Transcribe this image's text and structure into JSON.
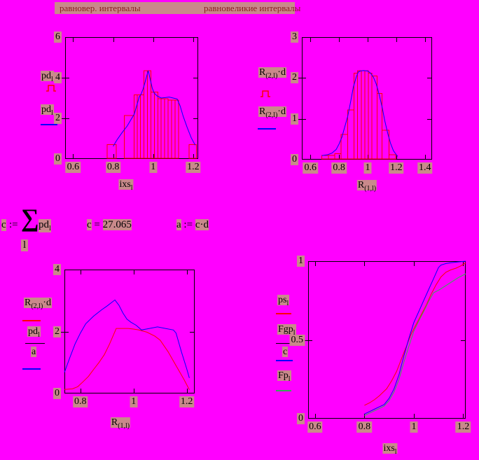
{
  "titles": {
    "left": "равновер. интервалы",
    "right": "равновеликие интервалы"
  },
  "formulas": {
    "sum_lhs": "c",
    "sum_assign": ":=",
    "sigma": "∑",
    "sum_index": "l",
    "sum_operand_base": "pd",
    "sum_operand_sub": "l",
    "result_lhs": "c",
    "result_eq": "=",
    "result_value": "27.065",
    "a_lhs": "a",
    "a_assign": ":=",
    "a_rhs": "c·d"
  },
  "colors": {
    "background": "#ff00ff",
    "highlight": "#c9898b",
    "title_text": "#8b2020",
    "axis": "#000000",
    "hist": "#ff0000",
    "red": "#ff0000",
    "blue": "#0000ff",
    "green": "#33aa55"
  },
  "chart_data": [
    {
      "name": "equiprobable-intervals-histogram",
      "type": "bar",
      "xlim": [
        0.56,
        1.225
      ],
      "ylim": [
        0,
        6
      ],
      "x_ticks": [
        {
          "v": 0.6,
          "t": "0.6"
        },
        {
          "v": 0.8,
          "t": "0.8"
        },
        {
          "v": 1,
          "t": "1"
        },
        {
          "v": 1.2,
          "t": "1.2"
        }
      ],
      "y_ticks": [
        {
          "v": 0,
          "t": "0"
        },
        {
          "v": 2,
          "t": "2"
        },
        {
          "v": 4,
          "t": "4"
        },
        {
          "v": 6,
          "t": "6"
        }
      ],
      "xlabel": {
        "base": "ixs",
        "sub": "l"
      },
      "legend": [
        {
          "base": "pd",
          "sub": "l",
          "suffix": ""
        },
        {
          "base": "pd",
          "sub": "l",
          "suffix": ""
        }
      ],
      "bars": [
        [
          0.77,
          0.815,
          0.7
        ],
        [
          0.855,
          0.905,
          2.13
        ],
        [
          0.905,
          0.92,
          3.15
        ],
        [
          0.92,
          0.937,
          3.15
        ],
        [
          0.937,
          0.954,
          3.15
        ],
        [
          0.954,
          0.971,
          4.35
        ],
        [
          0.971,
          0.988,
          4.35
        ],
        [
          0.988,
          1.006,
          3.3
        ],
        [
          1.006,
          1.023,
          3.3
        ],
        [
          1.023,
          1.04,
          2.97
        ],
        [
          1.04,
          1.057,
          2.97
        ],
        [
          1.057,
          1.075,
          2.97
        ],
        [
          1.075,
          1.092,
          2.9
        ],
        [
          1.092,
          1.109,
          2.9
        ],
        [
          1.109,
          1.127,
          2.9
        ],
        [
          1.18,
          1.217,
          0.7
        ]
      ],
      "series": [
        {
          "name": "pd-density-line",
          "color": "#0000ff",
          "points": [
            [
              0.8,
              0.62
            ],
            [
              0.82,
              0.95
            ],
            [
              0.845,
              1.3
            ],
            [
              0.87,
              1.62
            ],
            [
              0.89,
              1.95
            ],
            [
              0.905,
              2.2
            ],
            [
              0.92,
              2.7
            ],
            [
              0.93,
              3.05
            ],
            [
              0.94,
              3.2
            ],
            [
              0.95,
              3.45
            ],
            [
              0.96,
              3.8
            ],
            [
              0.975,
              4.35
            ],
            [
              0.985,
              3.95
            ],
            [
              0.995,
              3.5
            ],
            [
              1.005,
              3.25
            ],
            [
              1.02,
              3.1
            ],
            [
              1.04,
              3.0
            ],
            [
              1.06,
              3.02
            ],
            [
              1.08,
              3.05
            ],
            [
              1.1,
              3.0
            ],
            [
              1.12,
              2.95
            ],
            [
              1.135,
              2.6
            ],
            [
              1.15,
              2.1
            ],
            [
              1.17,
              1.55
            ],
            [
              1.19,
              1.05
            ],
            [
              1.21,
              0.68
            ]
          ]
        }
      ]
    },
    {
      "name": "equal-width-intervals-histogram",
      "type": "bar",
      "xlim": [
        0.54,
        1.45
      ],
      "ylim": [
        0,
        3
      ],
      "x_ticks": [
        {
          "v": 0.6,
          "t": "0.6"
        },
        {
          "v": 0.8,
          "t": "0.8"
        },
        {
          "v": 1,
          "t": "1"
        },
        {
          "v": 1.2,
          "t": "1.2"
        },
        {
          "v": 1.4,
          "t": "1.4"
        }
      ],
      "y_ticks": [
        {
          "v": 0,
          "t": "0"
        },
        {
          "v": 1,
          "t": "1"
        },
        {
          "v": 2,
          "t": "2"
        },
        {
          "v": 3,
          "t": "3"
        }
      ],
      "xlabel": {
        "base": "R",
        "sub": "(1,l)"
      },
      "legend": [
        {
          "base": "R",
          "sub": "(2,l)",
          "suffix": "·d"
        },
        {
          "base": "R",
          "sub": "(2,l)",
          "suffix": "·d"
        }
      ],
      "bars": [
        [
          0.68,
          0.725,
          0.1
        ],
        [
          0.725,
          0.77,
          0.1
        ],
        [
          0.77,
          0.815,
          0.15
        ],
        [
          0.815,
          0.86,
          0.62
        ],
        [
          0.86,
          0.905,
          1.22
        ],
        [
          0.905,
          0.93,
          2.12
        ],
        [
          0.93,
          0.955,
          2.18
        ],
        [
          0.955,
          0.98,
          2.18
        ],
        [
          0.98,
          1.005,
          2.18
        ],
        [
          1.005,
          1.03,
          2.12
        ],
        [
          1.03,
          1.065,
          2.05
        ],
        [
          1.065,
          1.1,
          1.62
        ],
        [
          1.1,
          1.15,
          0.72
        ],
        [
          1.15,
          1.195,
          0.12
        ]
      ],
      "series": [
        {
          "name": "Rd-density-line",
          "color": "#0000ff",
          "points": [
            [
              0.68,
              0.1
            ],
            [
              0.72,
              0.12
            ],
            [
              0.75,
              0.16
            ],
            [
              0.78,
              0.25
            ],
            [
              0.8,
              0.38
            ],
            [
              0.82,
              0.55
            ],
            [
              0.84,
              0.8
            ],
            [
              0.86,
              1.05
            ],
            [
              0.88,
              1.4
            ],
            [
              0.9,
              1.78
            ],
            [
              0.92,
              2.02
            ],
            [
              0.935,
              2.15
            ],
            [
              0.95,
              2.17
            ],
            [
              0.97,
              2.18
            ],
            [
              1.0,
              2.17
            ],
            [
              1.02,
              2.12
            ],
            [
              1.04,
              2.02
            ],
            [
              1.06,
              1.85
            ],
            [
              1.08,
              1.6
            ],
            [
              1.1,
              1.3
            ],
            [
              1.12,
              0.95
            ],
            [
              1.14,
              0.65
            ],
            [
              1.16,
              0.4
            ],
            [
              1.18,
              0.22
            ],
            [
              1.2,
              0.12
            ],
            [
              1.21,
              0.08
            ]
          ]
        }
      ]
    },
    {
      "name": "density-comparison",
      "type": "line",
      "xlim": [
        0.74,
        1.23
      ],
      "ylim": [
        0,
        4
      ],
      "x_ticks": [
        {
          "v": 0.8,
          "t": "0.8"
        },
        {
          "v": 1,
          "t": "1"
        },
        {
          "v": 1.2,
          "t": "1.2"
        }
      ],
      "y_ticks": [
        {
          "v": 0,
          "t": "0"
        },
        {
          "v": 2,
          "t": "2"
        },
        {
          "v": 4,
          "t": "4"
        }
      ],
      "xlabel": {
        "base": "R",
        "sub": "(1,l)"
      },
      "legend": [
        {
          "base": "R",
          "sub": "(2,l)",
          "suffix": "·d"
        },
        {
          "num_base": "pd",
          "num_sub": "l",
          "den": "a"
        }
      ],
      "bars": [],
      "series": [
        {
          "name": "Rd-line",
          "color": "#ff0000",
          "points": [
            [
              0.74,
              0.13
            ],
            [
              0.77,
              0.15
            ],
            [
              0.79,
              0.22
            ],
            [
              0.81,
              0.38
            ],
            [
              0.83,
              0.55
            ],
            [
              0.85,
              0.78
            ],
            [
              0.87,
              1.0
            ],
            [
              0.89,
              1.25
            ],
            [
              0.91,
              1.6
            ],
            [
              0.925,
              1.9
            ],
            [
              0.935,
              2.1
            ],
            [
              0.96,
              2.1
            ],
            [
              0.98,
              2.1
            ],
            [
              1.0,
              2.08
            ],
            [
              1.02,
              2.05
            ],
            [
              1.05,
              1.98
            ],
            [
              1.08,
              1.85
            ],
            [
              1.1,
              1.72
            ],
            [
              1.13,
              1.35
            ],
            [
              1.16,
              0.9
            ],
            [
              1.19,
              0.45
            ],
            [
              1.21,
              0.12
            ]
          ]
        },
        {
          "name": "pd-over-a-line",
          "color": "#0000ff",
          "points": [
            [
              0.74,
              0.68
            ],
            [
              0.76,
              1.15
            ],
            [
              0.78,
              1.6
            ],
            [
              0.8,
              1.95
            ],
            [
              0.82,
              2.25
            ],
            [
              0.85,
              2.5
            ],
            [
              0.88,
              2.7
            ],
            [
              0.9,
              2.82
            ],
            [
              0.93,
              3.02
            ],
            [
              0.945,
              2.85
            ],
            [
              0.96,
              2.6
            ],
            [
              0.975,
              2.4
            ],
            [
              0.99,
              2.3
            ],
            [
              1.01,
              2.2
            ],
            [
              1.03,
              2.05
            ],
            [
              1.06,
              2.1
            ],
            [
              1.09,
              2.15
            ],
            [
              1.12,
              2.1
            ],
            [
              1.15,
              2.05
            ],
            [
              1.16,
              1.95
            ],
            [
              1.18,
              1.35
            ],
            [
              1.2,
              0.8
            ],
            [
              1.21,
              0.5
            ]
          ]
        }
      ]
    },
    {
      "name": "cumulative-distributions",
      "type": "line",
      "xlim": [
        0.572,
        1.21
      ],
      "ylim": [
        0,
        1
      ],
      "x_ticks": [
        {
          "v": 0.6,
          "t": "0.6"
        },
        {
          "v": 0.8,
          "t": "0.8"
        },
        {
          "v": 1,
          "t": "1"
        },
        {
          "v": 1.2,
          "t": "1.2"
        }
      ],
      "y_ticks": [
        {
          "v": 0,
          "t": "0"
        },
        {
          "v": 0.5,
          "t": "0.5"
        },
        {
          "v": 1,
          "t": "1"
        }
      ],
      "xlabel": {
        "base": "ixs",
        "sub": "l"
      },
      "legend": [
        {
          "base": "ps",
          "sub": "l"
        },
        {
          "num_base": "Fgp",
          "num_sub": "l",
          "den": "c"
        },
        {
          "base": "Fp",
          "sub": "l"
        }
      ],
      "bars": [],
      "series": [
        {
          "name": "ps-line",
          "color": "#ff0000",
          "points": [
            [
              0.8,
              0.085
            ],
            [
              0.82,
              0.1
            ],
            [
              0.84,
              0.12
            ],
            [
              0.86,
              0.145
            ],
            [
              0.88,
              0.175
            ],
            [
              0.89,
              0.19
            ],
            [
              0.91,
              0.24
            ],
            [
              0.93,
              0.3
            ],
            [
              0.95,
              0.38
            ],
            [
              0.97,
              0.46
            ],
            [
              0.99,
              0.54
            ],
            [
              1.01,
              0.6
            ],
            [
              1.03,
              0.66
            ],
            [
              1.05,
              0.72
            ],
            [
              1.07,
              0.79
            ],
            [
              1.09,
              0.85
            ],
            [
              1.11,
              0.9
            ],
            [
              1.13,
              0.93
            ],
            [
              1.15,
              0.945
            ],
            [
              1.17,
              0.955
            ],
            [
              1.19,
              0.97
            ],
            [
              1.21,
              0.99
            ]
          ]
        },
        {
          "name": "Fgp-over-c-line",
          "color": "#0000ff",
          "points": [
            [
              0.8,
              0.03
            ],
            [
              0.82,
              0.045
            ],
            [
              0.84,
              0.06
            ],
            [
              0.86,
              0.075
            ],
            [
              0.88,
              0.09
            ],
            [
              0.9,
              0.13
            ],
            [
              0.92,
              0.19
            ],
            [
              0.94,
              0.28
            ],
            [
              0.96,
              0.4
            ],
            [
              0.98,
              0.51
            ],
            [
              1.0,
              0.61
            ],
            [
              1.02,
              0.68
            ],
            [
              1.04,
              0.75
            ],
            [
              1.06,
              0.82
            ],
            [
              1.08,
              0.89
            ],
            [
              1.1,
              0.96
            ],
            [
              1.11,
              0.975
            ],
            [
              1.13,
              0.985
            ],
            [
              1.15,
              0.99
            ],
            [
              1.18,
              0.995
            ],
            [
              1.21,
              1.0
            ]
          ]
        },
        {
          "name": "Fp-line",
          "color": "#33aa55",
          "points": [
            [
              0.8,
              0.02
            ],
            [
              0.82,
              0.035
            ],
            [
              0.84,
              0.05
            ],
            [
              0.86,
              0.065
            ],
            [
              0.88,
              0.08
            ],
            [
              0.9,
              0.115
            ],
            [
              0.92,
              0.17
            ],
            [
              0.94,
              0.25
            ],
            [
              0.96,
              0.36
            ],
            [
              0.98,
              0.46
            ],
            [
              1.0,
              0.555
            ],
            [
              1.02,
              0.62
            ],
            [
              1.04,
              0.68
            ],
            [
              1.06,
              0.745
            ],
            [
              1.08,
              0.8
            ],
            [
              1.1,
              0.815
            ],
            [
              1.12,
              0.835
            ],
            [
              1.14,
              0.855
            ],
            [
              1.16,
              0.875
            ],
            [
              1.18,
              0.895
            ],
            [
              1.21,
              0.92
            ]
          ]
        }
      ]
    }
  ]
}
